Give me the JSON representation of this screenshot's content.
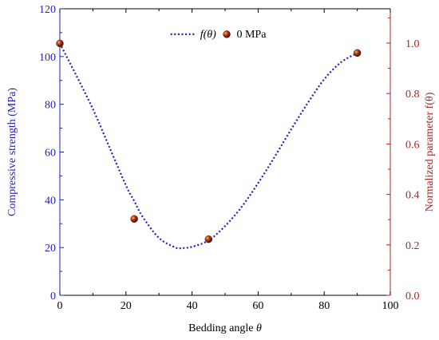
{
  "chart_data": {
    "type": "line",
    "xlabel": "Bedding angle",
    "xlabel_symbol": "θ",
    "ylabel_left": "Compressive strength (MPa)",
    "ylabel_right": "Normalized parameter f(θ)",
    "xlim": [
      0,
      100
    ],
    "ylim_left": [
      0,
      120
    ],
    "ylim_right": [
      0,
      1.136
    ],
    "x_ticks": [
      0,
      20,
      40,
      60,
      80,
      100
    ],
    "y_left_ticks": [
      0,
      20,
      40,
      60,
      80,
      100,
      120
    ],
    "y_right_ticks": [
      0.0,
      0.2,
      0.4,
      0.6,
      0.8,
      1.0
    ],
    "y_right_tick_labels": [
      "0.0",
      "0.2",
      "0.4",
      "0.6",
      "0.8",
      "1.0"
    ],
    "grid": false,
    "legend_position": "top-center",
    "series": [
      {
        "name": "f(θ)",
        "style": "dotted-line",
        "color": "#1f1fbf",
        "axis": "left",
        "x": [
          0,
          5,
          10,
          15,
          20,
          22.5,
          25,
          30,
          35,
          37,
          40,
          45,
          50,
          55,
          60,
          65,
          70,
          75,
          80,
          85,
          90
        ],
        "values": [
          105.5,
          92,
          78,
          62,
          46,
          39.5,
          33,
          24,
          20,
          19.8,
          20.3,
          23,
          29,
          37,
          47,
          58,
          69.5,
          80.5,
          90.5,
          97.5,
          101.5
        ]
      },
      {
        "name": "0 MPa",
        "style": "scatter",
        "color": "#8b1a1a",
        "axis": "left",
        "x": [
          0,
          22.5,
          45,
          90
        ],
        "values": [
          105.5,
          32,
          23.5,
          101.5
        ]
      }
    ],
    "colors": {
      "left_axis": "#1f1fbf",
      "right_axis": "#b22222",
      "frame": "#000000"
    }
  }
}
